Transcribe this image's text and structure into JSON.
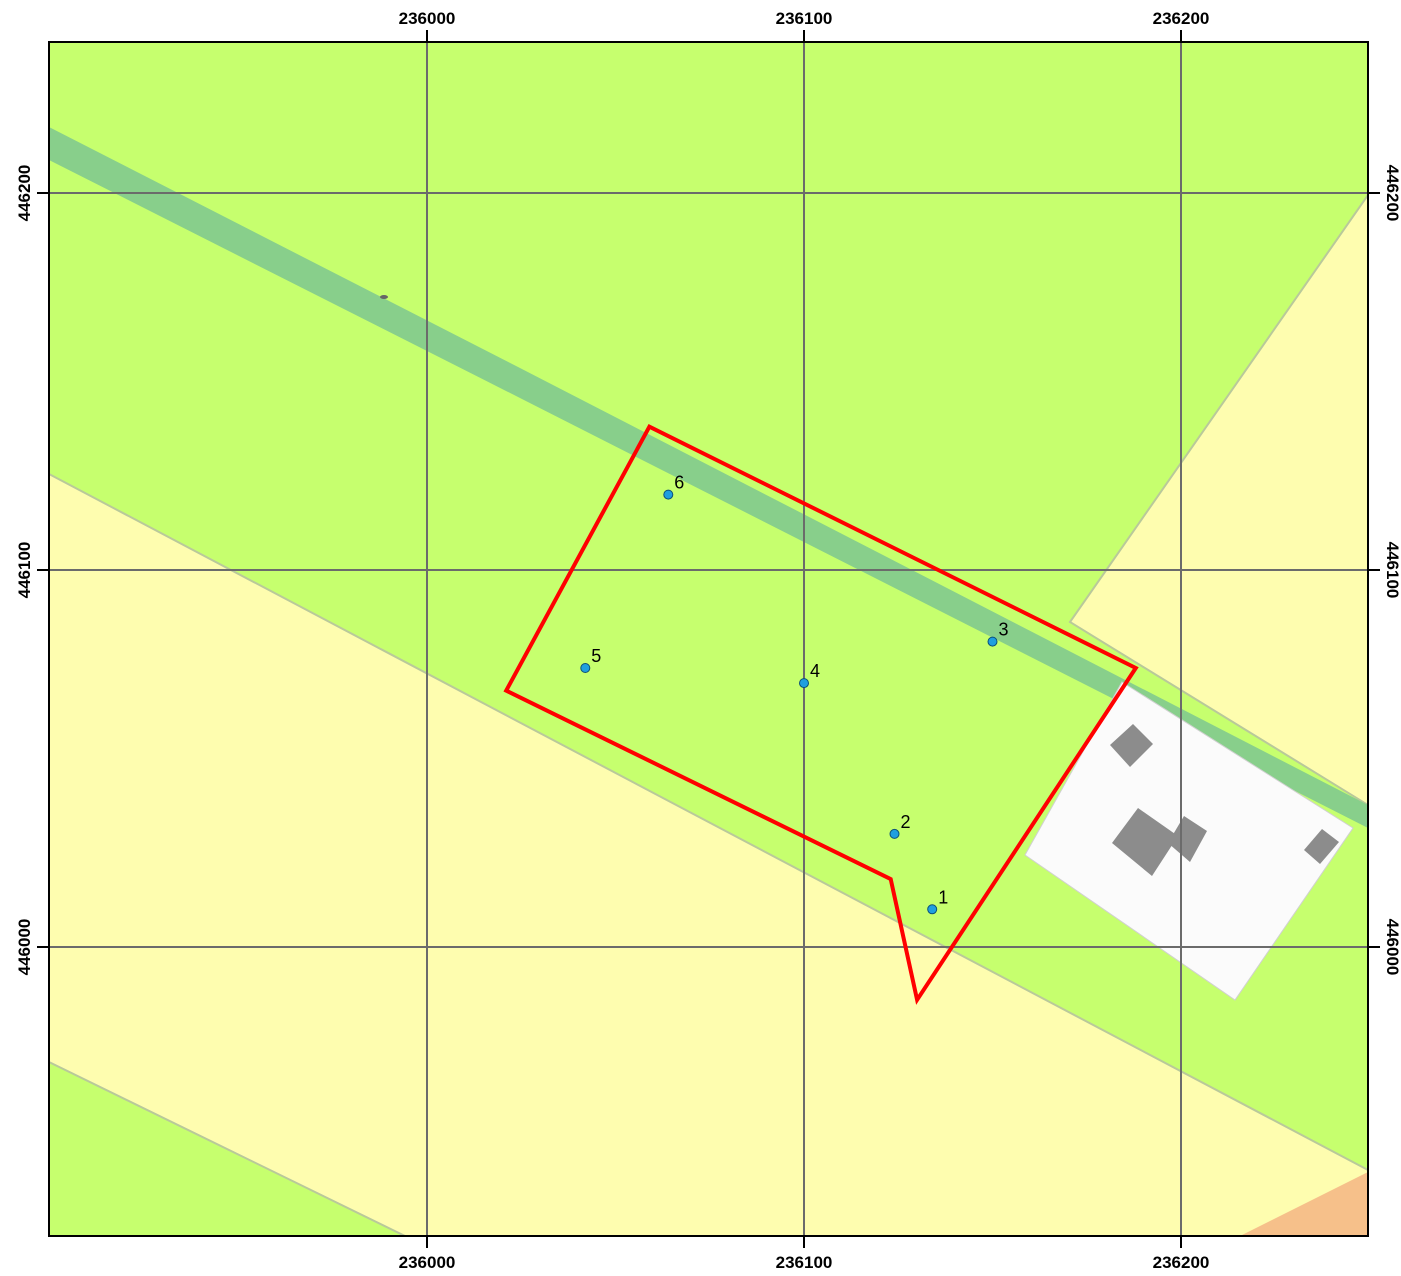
{
  "map": {
    "x_ticks": [
      "236000",
      "236100",
      "236200"
    ],
    "y_ticks": [
      "446200",
      "446100",
      "446000"
    ],
    "sample_points": [
      {
        "label": "1",
        "x": 236134,
        "y": 446010
      },
      {
        "label": "2",
        "x": 236124,
        "y": 446030
      },
      {
        "label": "3",
        "x": 236150,
        "y": 446081
      },
      {
        "label": "4",
        "x": 236100,
        "y": 446070
      },
      {
        "label": "5",
        "x": 236042,
        "y": 446074
      },
      {
        "label": "6",
        "x": 236064,
        "y": 446120
      }
    ],
    "parcel_vertices": [
      [
        236059,
        446138
      ],
      [
        236188,
        446074
      ],
      [
        236130,
        445986
      ],
      [
        236123,
        446018
      ],
      [
        236021,
        446068
      ]
    ],
    "colors": {
      "meadow": "#c6ff6e",
      "farmland": "#fefdaf",
      "ditch": "#88cf8b",
      "yard": "#fbfbfb",
      "building": "#8c8c8c",
      "orange_zone": "#f6c08a",
      "parcel_outline": "#ff0000",
      "point_fill": "#1f9fdf"
    }
  }
}
